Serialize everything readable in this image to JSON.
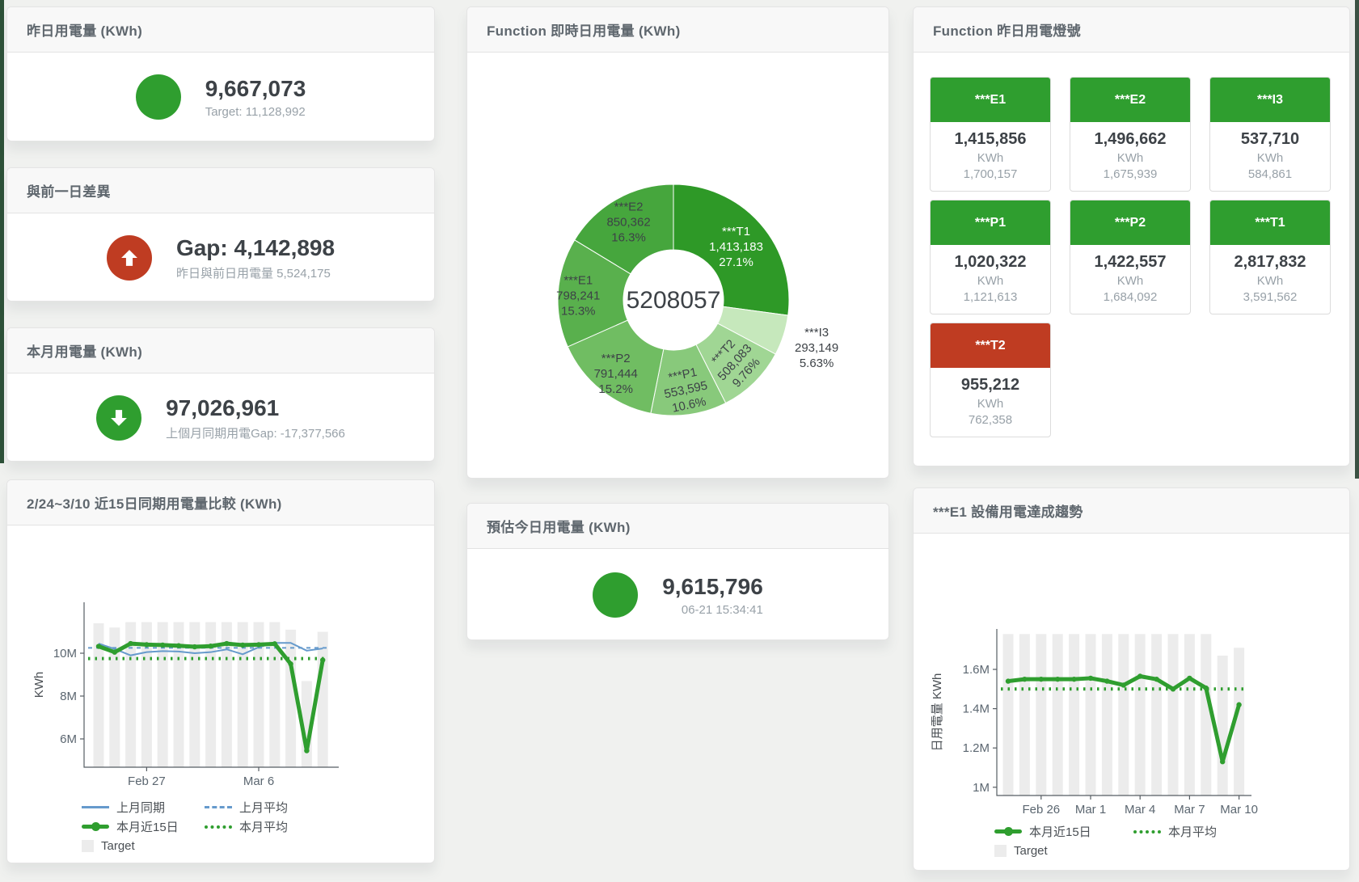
{
  "colors": {
    "green": "#2f9e2f",
    "red": "#bf3c22",
    "blue": "#669acc",
    "bar": "#ececec",
    "axis": "#565d63"
  },
  "cards": {
    "yesterday": {
      "title": "昨日用電量 (KWh)",
      "value": "9,667,073",
      "sub": "Target: 11,128,992",
      "icon": "circle",
      "icon_color": "#2f9e2f"
    },
    "gap": {
      "title": "與前一日差異",
      "value": "Gap: 4,142,898",
      "sub": "昨日與前日用電量 5,524,175",
      "icon": "arrow-up",
      "icon_color": "#bf3c22"
    },
    "month": {
      "title": "本月用電量 (KWh)",
      "value": "97,026,961",
      "sub": "上個月同期用電Gap: -17,377,566",
      "icon": "arrow-down",
      "icon_color": "#2f9e2f"
    },
    "today": {
      "title": "預估今日用電量 (KWh)",
      "value": "9,615,796",
      "sub": "06-21 15:34:41",
      "icon": "circle",
      "icon_color": "#2f9e2f"
    }
  },
  "lights": {
    "title": "Function 昨日用電燈號",
    "unit": "KWh",
    "status_colors": {
      "green": "#2f9e2f",
      "red": "#bf3c22"
    },
    "tiles": [
      {
        "name": "***E1",
        "value": "1,415,856",
        "target": "1,700,157",
        "status": "green"
      },
      {
        "name": "***E2",
        "value": "1,496,662",
        "target": "1,675,939",
        "status": "green"
      },
      {
        "name": "***I3",
        "value": "537,710",
        "target": "584,861",
        "status": "green"
      },
      {
        "name": "***P1",
        "value": "1,020,322",
        "target": "1,121,613",
        "status": "green"
      },
      {
        "name": "***P2",
        "value": "1,422,557",
        "target": "1,684,092",
        "status": "green"
      },
      {
        "name": "***T1",
        "value": "2,817,832",
        "target": "3,591,562",
        "status": "green"
      },
      {
        "name": "***T2",
        "value": "955,212",
        "target": "762,358",
        "status": "red"
      }
    ]
  },
  "chart_data": [
    {
      "id": "realtime-donut",
      "type": "pie",
      "title": "Function 即時日用電量 (KWh)",
      "center_total": "5208057",
      "unit": "KWh",
      "segments": [
        {
          "label": "***T1",
          "value": 1413183,
          "value_label": "1,413,183",
          "pct": 27.1,
          "pct_label": "27.1%",
          "color": "#2e9927",
          "text_color": "#ffffff",
          "label_r": 103,
          "rot": 0
        },
        {
          "label": "***I3",
          "value": 293149,
          "value_label": "293,149",
          "pct": 5.63,
          "pct_label": "5.63%",
          "color": "#c6e8bc",
          "outside": true,
          "label_r": 186,
          "rot": 0
        },
        {
          "label": "***T2",
          "value": 508083,
          "value_label": "508,083",
          "pct": 9.76,
          "pct_label": "9.76%",
          "color": "#a0d694",
          "label_r": 106,
          "rot": -48
        },
        {
          "label": "***P1",
          "value": 553595,
          "value_label": "553,595",
          "pct": 10.6,
          "pct_label": "10.6%",
          "color": "#88c97b",
          "label_r": 110,
          "rot": -12
        },
        {
          "label": "***P2",
          "value": 791444,
          "value_label": "791,444",
          "pct": 15.2,
          "pct_label": "15.2%",
          "color": "#70bd62",
          "label_r": 114,
          "rot": 0
        },
        {
          "label": "***E1",
          "value": 798241,
          "value_label": "798,241",
          "pct": 15.3,
          "pct_label": "15.3%",
          "color": "#59b04d",
          "label_r": 118,
          "rot": 0
        },
        {
          "label": "***E2",
          "value": 850362,
          "value_label": "850,362",
          "pct": 16.3,
          "pct_label": "16.3%",
          "color": "#46a63d",
          "label_r": 113,
          "rot": 0
        }
      ]
    },
    {
      "id": "compare-15day",
      "type": "line",
      "title": "2/24~3/10 近15日同期用電量比較 (KWh)",
      "ylabel": "KWh",
      "unit": "M KWh",
      "ylim": [
        4.7,
        12.1
      ],
      "x_dates": [
        "Feb 24",
        "Feb 25",
        "Feb 26",
        "Feb 27",
        "Feb 28",
        "Mar 1",
        "Mar 2",
        "Mar 3",
        "Mar 4",
        "Mar 5",
        "Mar 6",
        "Mar 7",
        "Mar 8",
        "Mar 9",
        "Mar 10"
      ],
      "yticks": [
        {
          "v": 6,
          "label": "6M"
        },
        {
          "v": 8,
          "label": "8M"
        },
        {
          "v": 10,
          "label": "10M"
        }
      ],
      "xticks": [
        {
          "i": 3,
          "label": "Feb 27"
        },
        {
          "i": 10,
          "label": "Mar 6"
        }
      ],
      "bars": {
        "name": "Target",
        "values": [
          11.4,
          11.2,
          11.45,
          11.45,
          11.45,
          11.45,
          11.45,
          11.45,
          11.45,
          11.45,
          11.45,
          11.45,
          11.1,
          8.7,
          11.0
        ]
      },
      "series": [
        {
          "name": "上月同期",
          "style": "blue-solid",
          "values": [
            10.45,
            10.2,
            9.9,
            10.05,
            10.1,
            10.08,
            10.0,
            10.05,
            10.18,
            9.95,
            10.28,
            10.48,
            10.48,
            10.12,
            10.22
          ]
        },
        {
          "name": "上月平均",
          "style": "blue-dashed",
          "flat": 10.25
        },
        {
          "name": "本月近15日",
          "style": "green-thick",
          "dots": true,
          "values": [
            10.32,
            10.05,
            10.45,
            10.4,
            10.38,
            10.35,
            10.3,
            10.33,
            10.45,
            10.38,
            10.4,
            10.44,
            9.5,
            5.45,
            9.68
          ]
        },
        {
          "name": "本月平均",
          "style": "green-dotted",
          "flat": 9.75
        }
      ],
      "legend": [
        {
          "label": "上月同期",
          "style": "blue-solid"
        },
        {
          "label": "上月平均",
          "style": "blue-dashed"
        },
        {
          "label": "本月近15日",
          "style": "green-thick"
        },
        {
          "label": "本月平均",
          "style": "green-dotted"
        },
        {
          "label": "Target",
          "style": "gray-box"
        }
      ]
    },
    {
      "id": "e1-trend",
      "type": "line",
      "title": "***E1 設備用電達成趨勢",
      "ylabel": "日用電量 KWh",
      "unit": "M KWh",
      "ylim": [
        0.96,
        1.82
      ],
      "x_dates": [
        "Feb 24",
        "Feb 25",
        "Feb 26",
        "Feb 27",
        "Feb 28",
        "Mar 1",
        "Mar 2",
        "Mar 3",
        "Mar 4",
        "Mar 5",
        "Mar 6",
        "Mar 7",
        "Mar 8",
        "Mar 9",
        "Mar 10"
      ],
      "yticks": [
        {
          "v": 1,
          "label": "1M"
        },
        {
          "v": 1.2,
          "label": "1.2M"
        },
        {
          "v": 1.4,
          "label": "1.4M"
        },
        {
          "v": 1.6,
          "label": "1.6M"
        }
      ],
      "xticks": [
        {
          "i": 2,
          "label": "Feb 26"
        },
        {
          "i": 5,
          "label": "Mar 1"
        },
        {
          "i": 8,
          "label": "Mar 4"
        },
        {
          "i": 11,
          "label": "Mar 7"
        },
        {
          "i": 14,
          "label": "Mar 10"
        }
      ],
      "bars": {
        "name": "Target",
        "values": [
          1.78,
          1.78,
          1.78,
          1.78,
          1.78,
          1.78,
          1.78,
          1.78,
          1.78,
          1.78,
          1.78,
          1.78,
          1.78,
          1.67,
          1.71
        ]
      },
      "series": [
        {
          "name": "本月近15日",
          "style": "green-thick",
          "dots": true,
          "values": [
            1.54,
            1.55,
            1.55,
            1.55,
            1.55,
            1.555,
            1.54,
            1.52,
            1.565,
            1.55,
            1.5,
            1.555,
            1.505,
            1.13,
            1.42
          ]
        },
        {
          "name": "本月平均",
          "style": "green-dotted",
          "flat": 1.5
        }
      ],
      "legend": [
        {
          "label": "本月近15日",
          "style": "green-thick"
        },
        {
          "label": "本月平均",
          "style": "green-dotted"
        },
        {
          "label": "Target",
          "style": "gray-box"
        }
      ]
    }
  ]
}
